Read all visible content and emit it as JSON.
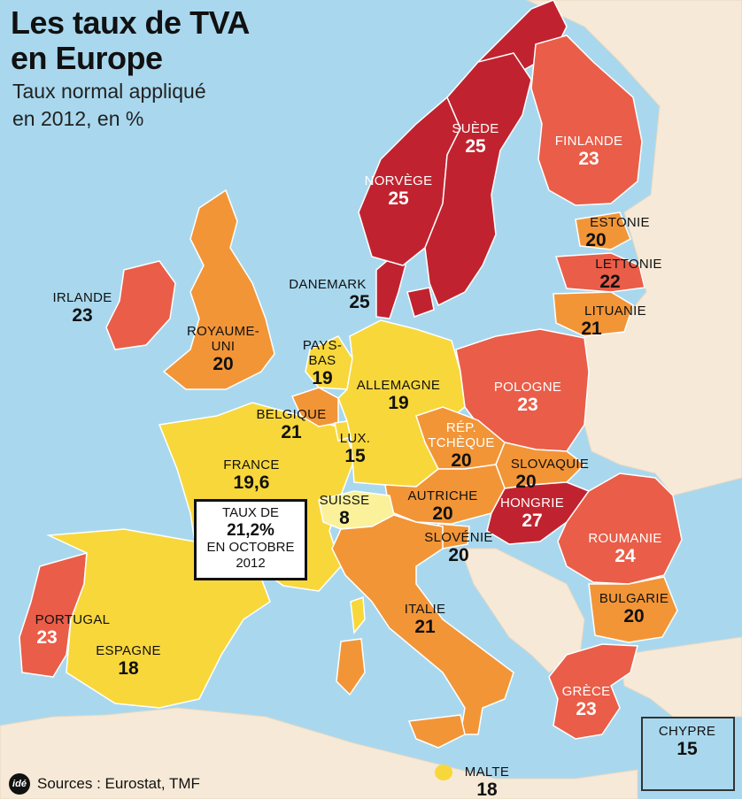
{
  "title_line1": "Les taux de TVA",
  "title_line2": "en Europe",
  "subtitle_line1": "Taux normal appliqué",
  "subtitle_line2": "en 2012, en %",
  "legend_colors": {
    "sea": "#a9d8ee",
    "non_eu_land": "#f6e9d7",
    "rate_low": "#fbf19a",
    "rate_19": "#f8d73b",
    "rate_20_21": "#f29537",
    "rate_22_24": "#ea5d48",
    "rate_25_27": "#c0232f"
  },
  "countries": [
    {
      "id": "irlande",
      "name": "IRLANDE",
      "rate": "23"
    },
    {
      "id": "royaume-uni",
      "name_line1": "ROYAUME-",
      "name_line2": "UNI",
      "rate": "20"
    },
    {
      "id": "pays-bas",
      "name_line1": "PAYS-",
      "name_line2": "BAS",
      "rate": "19"
    },
    {
      "id": "belgique",
      "name": "BELGIQUE",
      "rate": "21"
    },
    {
      "id": "lux",
      "name": "LUX.",
      "rate": "15"
    },
    {
      "id": "france",
      "name": "FRANCE",
      "rate": "19,6"
    },
    {
      "id": "suisse",
      "name": "SUISSE",
      "rate": "8"
    },
    {
      "id": "allemagne",
      "name": "ALLEMAGNE",
      "rate": "19"
    },
    {
      "id": "danemark",
      "name": "DANEMARK",
      "rate": "25"
    },
    {
      "id": "norvege",
      "name": "NORVÈGE",
      "rate": "25"
    },
    {
      "id": "suede",
      "name": "SUÈDE",
      "rate": "25"
    },
    {
      "id": "finlande",
      "name": "FINLANDE",
      "rate": "23"
    },
    {
      "id": "estonie",
      "name": "ESTONIE",
      "rate": "20"
    },
    {
      "id": "lettonie",
      "name": "LETTONIE",
      "rate": "22"
    },
    {
      "id": "lituanie",
      "name": "LITUANIE",
      "rate": "21"
    },
    {
      "id": "pologne",
      "name": "POLOGNE",
      "rate": "23"
    },
    {
      "id": "rep-tcheque",
      "name_line1": "RÉP.",
      "name_line2": "TCHÈQUE",
      "rate": "20"
    },
    {
      "id": "slovaquie",
      "name": "SLOVAQUIE",
      "rate": "20"
    },
    {
      "id": "autriche",
      "name": "AUTRICHE",
      "rate": "20"
    },
    {
      "id": "hongrie",
      "name": "HONGRIE",
      "rate": "27"
    },
    {
      "id": "slovenie",
      "name": "SLOVÉNIE",
      "rate": "20"
    },
    {
      "id": "roumanie",
      "name": "ROUMANIE",
      "rate": "24"
    },
    {
      "id": "bulgarie",
      "name": "BULGARIE",
      "rate": "20"
    },
    {
      "id": "italie",
      "name": "ITALIE",
      "rate": "21"
    },
    {
      "id": "grece",
      "name": "GRÈCE",
      "rate": "23"
    },
    {
      "id": "portugal",
      "name": "PORTUGAL",
      "rate": "23"
    },
    {
      "id": "espagne",
      "name": "ESPAGNE",
      "rate": "18"
    },
    {
      "id": "malte",
      "name": "MALTE",
      "rate": "18"
    },
    {
      "id": "chypre",
      "name": "CHYPRE",
      "rate": "15"
    }
  ],
  "france_note": {
    "line1": "TAUX DE",
    "line2": "21,2%",
    "line3": "EN OCTOBRE",
    "line4": "2012"
  },
  "footer": {
    "logo_text": "idé",
    "source": "Sources : Eurostat, TMF"
  }
}
